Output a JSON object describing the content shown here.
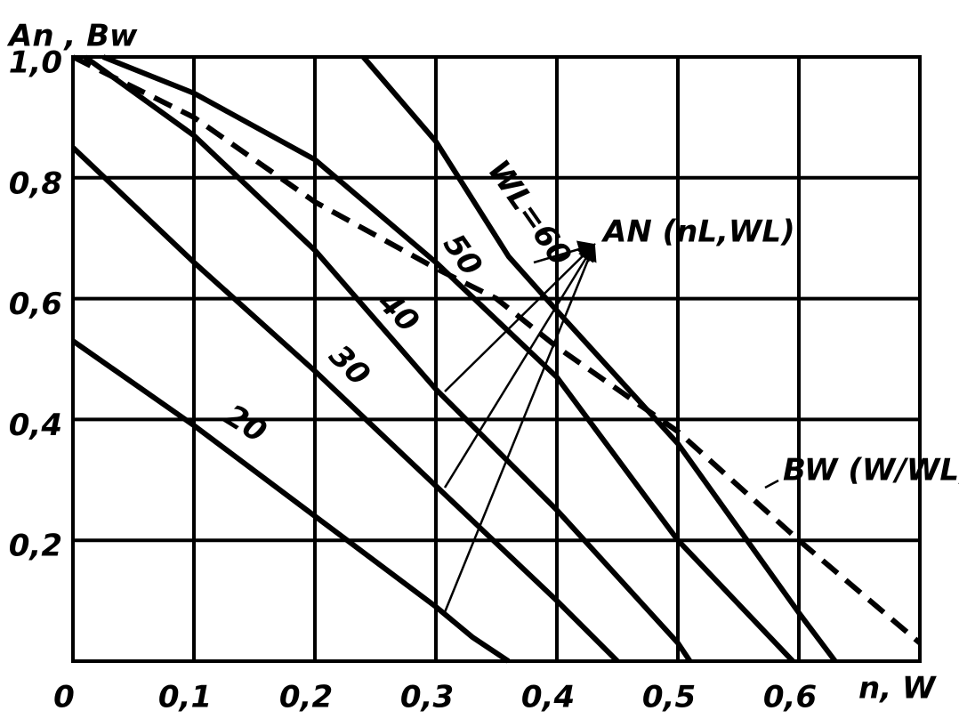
{
  "chart_data": {
    "type": "line",
    "xlabel": "n, W",
    "ylabel": "An , Bw",
    "xlim": [
      0,
      0.7
    ],
    "ylim": [
      0,
      1.0
    ],
    "xticks": [
      0,
      {
        "value": 0.1,
        "label": "0,1"
      },
      {
        "value": 0.2,
        "label": "0,2"
      },
      {
        "value": 0.3,
        "label": "0,3"
      },
      {
        "value": 0.4,
        "label": "0,4"
      },
      {
        "value": 0.5,
        "label": "0,5"
      },
      {
        "value": 0.6,
        "label": "0,6"
      }
    ],
    "yticks": [
      {
        "value": 0.2,
        "label": "0,2"
      },
      {
        "value": 0.4,
        "label": "0,4"
      },
      {
        "value": 0.6,
        "label": "0,6"
      },
      {
        "value": 0.8,
        "label": "0,8"
      },
      {
        "value": 1.0,
        "label": "1,0"
      }
    ],
    "grid": true,
    "annotations": [
      "AN (nL,WL)"
    ],
    "series": [
      {
        "name": "20",
        "color": "#000000",
        "style": "solid",
        "x": [
          0,
          0.1,
          0.2,
          0.3,
          0.33,
          0.36
        ],
        "values": [
          0.53,
          0.39,
          0.24,
          0.09,
          0.04,
          0
        ]
      },
      {
        "name": "30",
        "color": "#000000",
        "style": "solid",
        "x": [
          0,
          0.1,
          0.2,
          0.3,
          0.4,
          0.45
        ],
        "values": [
          0.85,
          0.66,
          0.48,
          0.29,
          0.1,
          0
        ]
      },
      {
        "name": "40",
        "color": "#000000",
        "style": "solid",
        "x": [
          0.01,
          0.1,
          0.2,
          0.3,
          0.4,
          0.5,
          0.51
        ],
        "values": [
          1.0,
          0.87,
          0.68,
          0.45,
          0.25,
          0.03,
          0
        ]
      },
      {
        "name": "50",
        "color": "#000000",
        "style": "solid",
        "x": [
          0.025,
          0.1,
          0.2,
          0.3,
          0.4,
          0.5,
          0.595
        ],
        "values": [
          1.0,
          0.94,
          0.83,
          0.66,
          0.47,
          0.2,
          0
        ]
      },
      {
        "name": "WL=60",
        "color": "#000000",
        "style": "solid",
        "x": [
          0.24,
          0.3,
          0.36,
          0.4,
          0.5,
          0.6,
          0.63
        ],
        "values": [
          1.0,
          0.86,
          0.67,
          0.58,
          0.36,
          0.08,
          0
        ]
      },
      {
        "name": "BW (W/WL)",
        "color": "#000000",
        "style": "dashed",
        "x": [
          0,
          0.1,
          0.2,
          0.3,
          0.35,
          0.4,
          0.5,
          0.6,
          0.7
        ],
        "values": [
          1.0,
          0.9,
          0.76,
          0.65,
          0.6,
          0.52,
          0.38,
          0.2,
          0.03
        ]
      }
    ]
  }
}
